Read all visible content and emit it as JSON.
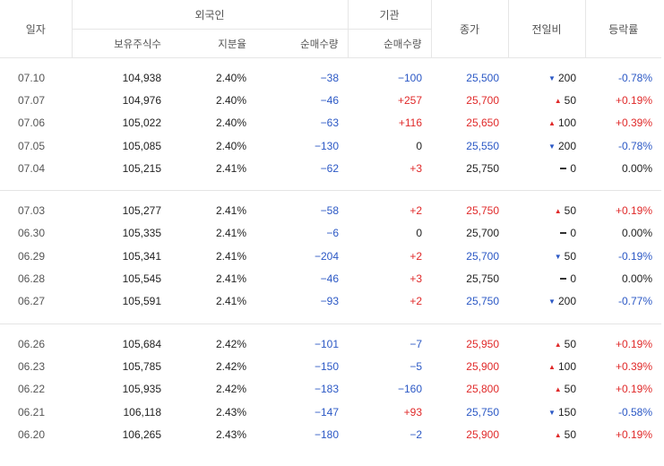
{
  "header": {
    "date": "일자",
    "foreign": "외국인",
    "institution": "기관",
    "close": "종가",
    "change": "전일비",
    "rate": "등락률",
    "holdings": "보유주식수",
    "share": "지분율",
    "foreign_net": "순매수량",
    "inst_net": "순매수량"
  },
  "groups": [
    {
      "rows": [
        {
          "date": "07.10",
          "holdings": "104,938",
          "share": "2.40%",
          "foreign_net": "−38",
          "inst_net": "−100",
          "close": "25,500",
          "change": "200",
          "dir": "down",
          "rate": "-0.78%"
        },
        {
          "date": "07.07",
          "holdings": "104,976",
          "share": "2.40%",
          "foreign_net": "−46",
          "inst_net": "+257",
          "close": "25,700",
          "change": "50",
          "dir": "up",
          "rate": "+0.19%"
        },
        {
          "date": "07.06",
          "holdings": "105,022",
          "share": "2.40%",
          "foreign_net": "−63",
          "inst_net": "+116",
          "close": "25,650",
          "change": "100",
          "dir": "up",
          "rate": "+0.39%"
        },
        {
          "date": "07.05",
          "holdings": "105,085",
          "share": "2.40%",
          "foreign_net": "−130",
          "inst_net": "0",
          "close": "25,550",
          "change": "200",
          "dir": "down",
          "rate": "-0.78%"
        },
        {
          "date": "07.04",
          "holdings": "105,215",
          "share": "2.41%",
          "foreign_net": "−62",
          "inst_net": "+3",
          "close": "25,750",
          "change": "0",
          "dir": "flat",
          "rate": "0.00%"
        }
      ]
    },
    {
      "rows": [
        {
          "date": "07.03",
          "holdings": "105,277",
          "share": "2.41%",
          "foreign_net": "−58",
          "inst_net": "+2",
          "close": "25,750",
          "change": "50",
          "dir": "up",
          "rate": "+0.19%"
        },
        {
          "date": "06.30",
          "holdings": "105,335",
          "share": "2.41%",
          "foreign_net": "−6",
          "inst_net": "0",
          "close": "25,700",
          "change": "0",
          "dir": "flat",
          "rate": "0.00%"
        },
        {
          "date": "06.29",
          "holdings": "105,341",
          "share": "2.41%",
          "foreign_net": "−204",
          "inst_net": "+2",
          "close": "25,700",
          "change": "50",
          "dir": "down",
          "rate": "-0.19%"
        },
        {
          "date": "06.28",
          "holdings": "105,545",
          "share": "2.41%",
          "foreign_net": "−46",
          "inst_net": "+3",
          "close": "25,750",
          "change": "0",
          "dir": "flat",
          "rate": "0.00%"
        },
        {
          "date": "06.27",
          "holdings": "105,591",
          "share": "2.41%",
          "foreign_net": "−93",
          "inst_net": "+2",
          "close": "25,750",
          "change": "200",
          "dir": "down",
          "rate": "-0.77%"
        }
      ]
    },
    {
      "rows": [
        {
          "date": "06.26",
          "holdings": "105,684",
          "share": "2.42%",
          "foreign_net": "−101",
          "inst_net": "−7",
          "close": "25,950",
          "change": "50",
          "dir": "up",
          "rate": "+0.19%"
        },
        {
          "date": "06.23",
          "holdings": "105,785",
          "share": "2.42%",
          "foreign_net": "−150",
          "inst_net": "−5",
          "close": "25,900",
          "change": "100",
          "dir": "up",
          "rate": "+0.39%"
        },
        {
          "date": "06.22",
          "holdings": "105,935",
          "share": "2.42%",
          "foreign_net": "−183",
          "inst_net": "−160",
          "close": "25,800",
          "change": "50",
          "dir": "up",
          "rate": "+0.19%"
        },
        {
          "date": "06.21",
          "holdings": "106,118",
          "share": "2.43%",
          "foreign_net": "−147",
          "inst_net": "+93",
          "close": "25,750",
          "change": "150",
          "dir": "down",
          "rate": "-0.58%"
        },
        {
          "date": "06.20",
          "holdings": "106,265",
          "share": "2.43%",
          "foreign_net": "−180",
          "inst_net": "−2",
          "close": "25,900",
          "change": "50",
          "dir": "up",
          "rate": "+0.19%"
        }
      ]
    }
  ],
  "colors": {
    "up": "#e02929",
    "down": "#2b58c5",
    "flat": "#222222"
  },
  "icons": {
    "up": "triangle-up-icon",
    "down": "triangle-down-icon",
    "flat": "dash-icon"
  }
}
